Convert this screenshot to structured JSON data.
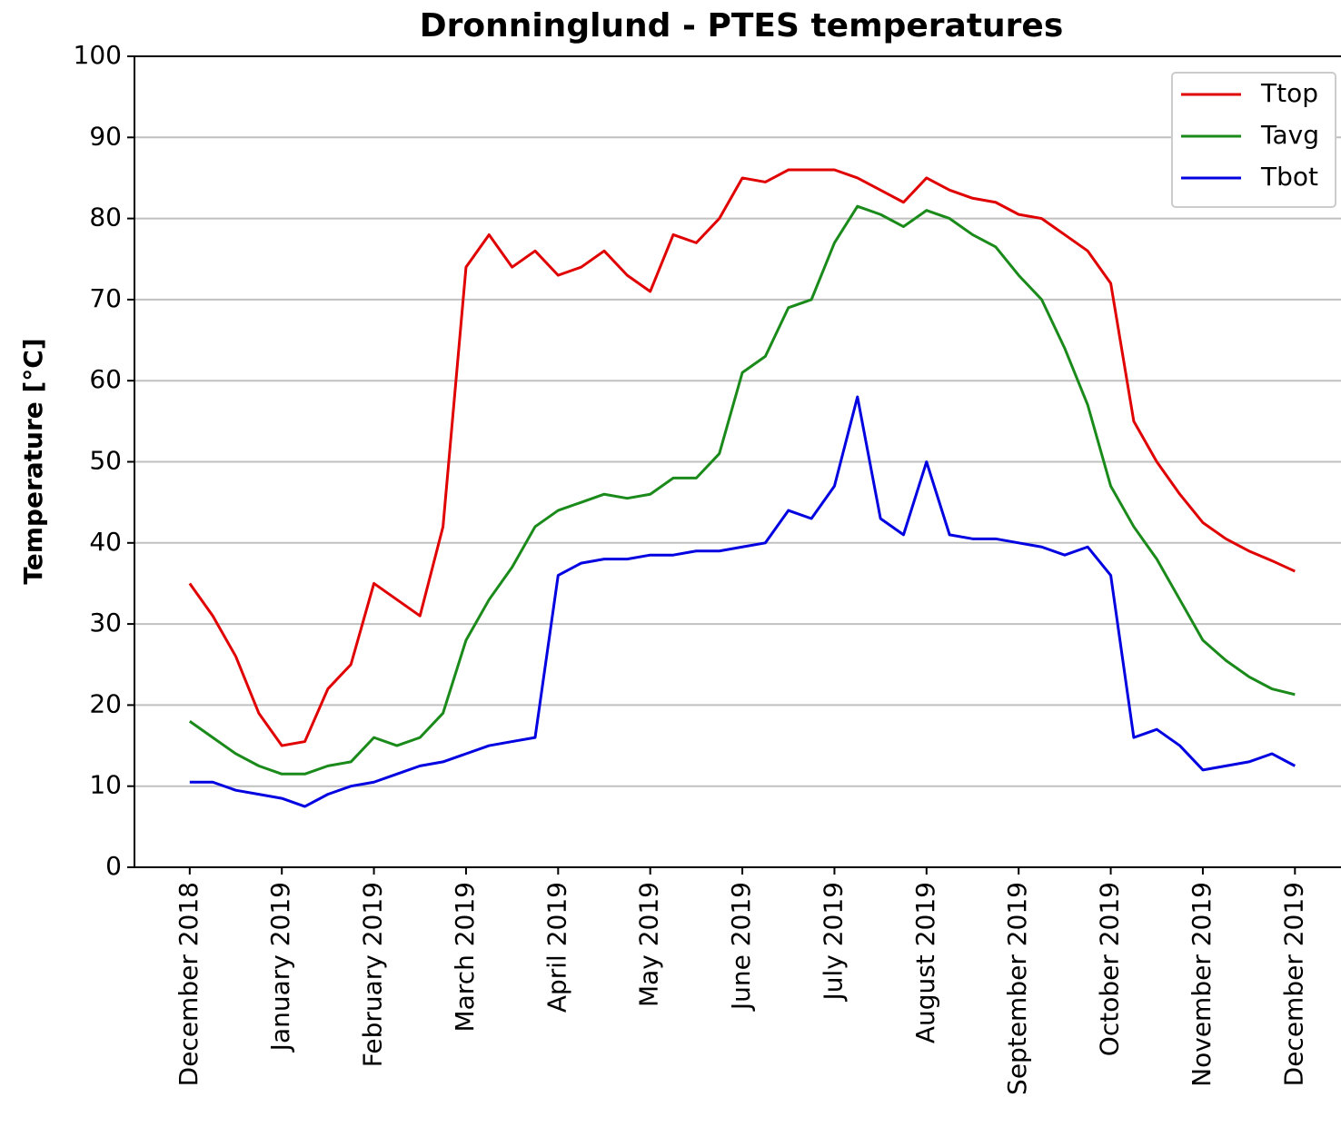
{
  "chart_data": {
    "type": "line",
    "title": "Dronninglund - PTES temperatures",
    "y_label": "Temperature [°C]",
    "x": [
      0,
      0.25,
      0.5,
      0.75,
      1,
      1.25,
      1.5,
      1.75,
      2,
      2.25,
      2.5,
      2.75,
      3,
      3.25,
      3.5,
      3.75,
      4,
      4.25,
      4.5,
      4.75,
      5,
      5.25,
      5.5,
      5.75,
      6,
      6.25,
      6.5,
      6.75,
      7,
      7.25,
      7.5,
      7.75,
      8,
      8.25,
      8.5,
      8.75,
      9,
      9.25,
      9.5,
      9.75,
      10,
      10.25,
      10.5,
      10.75,
      11,
      11.25,
      11.5,
      11.75,
      12
    ],
    "series": [
      {
        "name": "Ttop",
        "color": "#e00000",
        "values": [
          35,
          31,
          26,
          19,
          15,
          15.5,
          22,
          25,
          35,
          33,
          31,
          42,
          74,
          78,
          74,
          76,
          73,
          74,
          76,
          73,
          71,
          78,
          77,
          80,
          85,
          84.5,
          86,
          86,
          86,
          85,
          83.5,
          82,
          85,
          83.5,
          82.5,
          82,
          80.5,
          80,
          78,
          76,
          72,
          55,
          50,
          46,
          42.5,
          40.5,
          39,
          37.8,
          36.5
        ]
      },
      {
        "name": "Tavg",
        "color": "#1a8a1a",
        "values": [
          18,
          16,
          14,
          12.5,
          11.5,
          11.5,
          12.5,
          13,
          16,
          15,
          16,
          19,
          28,
          33,
          37,
          42,
          44,
          45,
          46,
          45.5,
          46,
          48,
          48,
          51,
          61,
          63,
          69,
          70,
          77,
          81.5,
          80.5,
          79,
          81,
          80,
          78,
          76.5,
          73,
          70,
          64,
          57,
          47,
          42,
          38,
          33,
          28,
          25.5,
          23.5,
          22,
          21.3
        ]
      },
      {
        "name": "Tbot",
        "color": "#0000e0",
        "values": [
          10.5,
          10.5,
          9.5,
          9,
          8.5,
          7.5,
          9,
          10,
          10.5,
          11.5,
          12.5,
          13,
          14,
          15,
          15.5,
          16,
          36,
          37.5,
          38,
          38,
          38.5,
          38.5,
          39,
          39,
          39.5,
          40,
          44,
          43,
          47,
          58,
          43,
          41,
          50,
          41,
          40.5,
          40.5,
          40,
          39.5,
          38.5,
          39.5,
          36,
          16,
          17,
          15,
          12,
          12.5,
          13,
          14,
          12.5
        ]
      }
    ],
    "xlim": [
      -0.6,
      12.5
    ],
    "xticks": [
      {
        "value": 0,
        "label": "December 2018"
      },
      {
        "value": 1,
        "label": "January 2019"
      },
      {
        "value": 2,
        "label": "February 2019"
      },
      {
        "value": 3,
        "label": "March 2019"
      },
      {
        "value": 4,
        "label": "April 2019"
      },
      {
        "value": 5,
        "label": "May 2019"
      },
      {
        "value": 6,
        "label": "June 2019"
      },
      {
        "value": 7,
        "label": "July 2019"
      },
      {
        "value": 8,
        "label": "August 2019"
      },
      {
        "value": 9,
        "label": "September 2019"
      },
      {
        "value": 10,
        "label": "October 2019"
      },
      {
        "value": 11,
        "label": "November 2019"
      },
      {
        "value": 12,
        "label": "December 2019"
      }
    ],
    "ylim": [
      0,
      100
    ],
    "yticks": [
      0,
      10,
      20,
      30,
      40,
      50,
      60,
      70,
      80,
      90,
      100
    ],
    "grid": true,
    "legend": "upper right"
  }
}
